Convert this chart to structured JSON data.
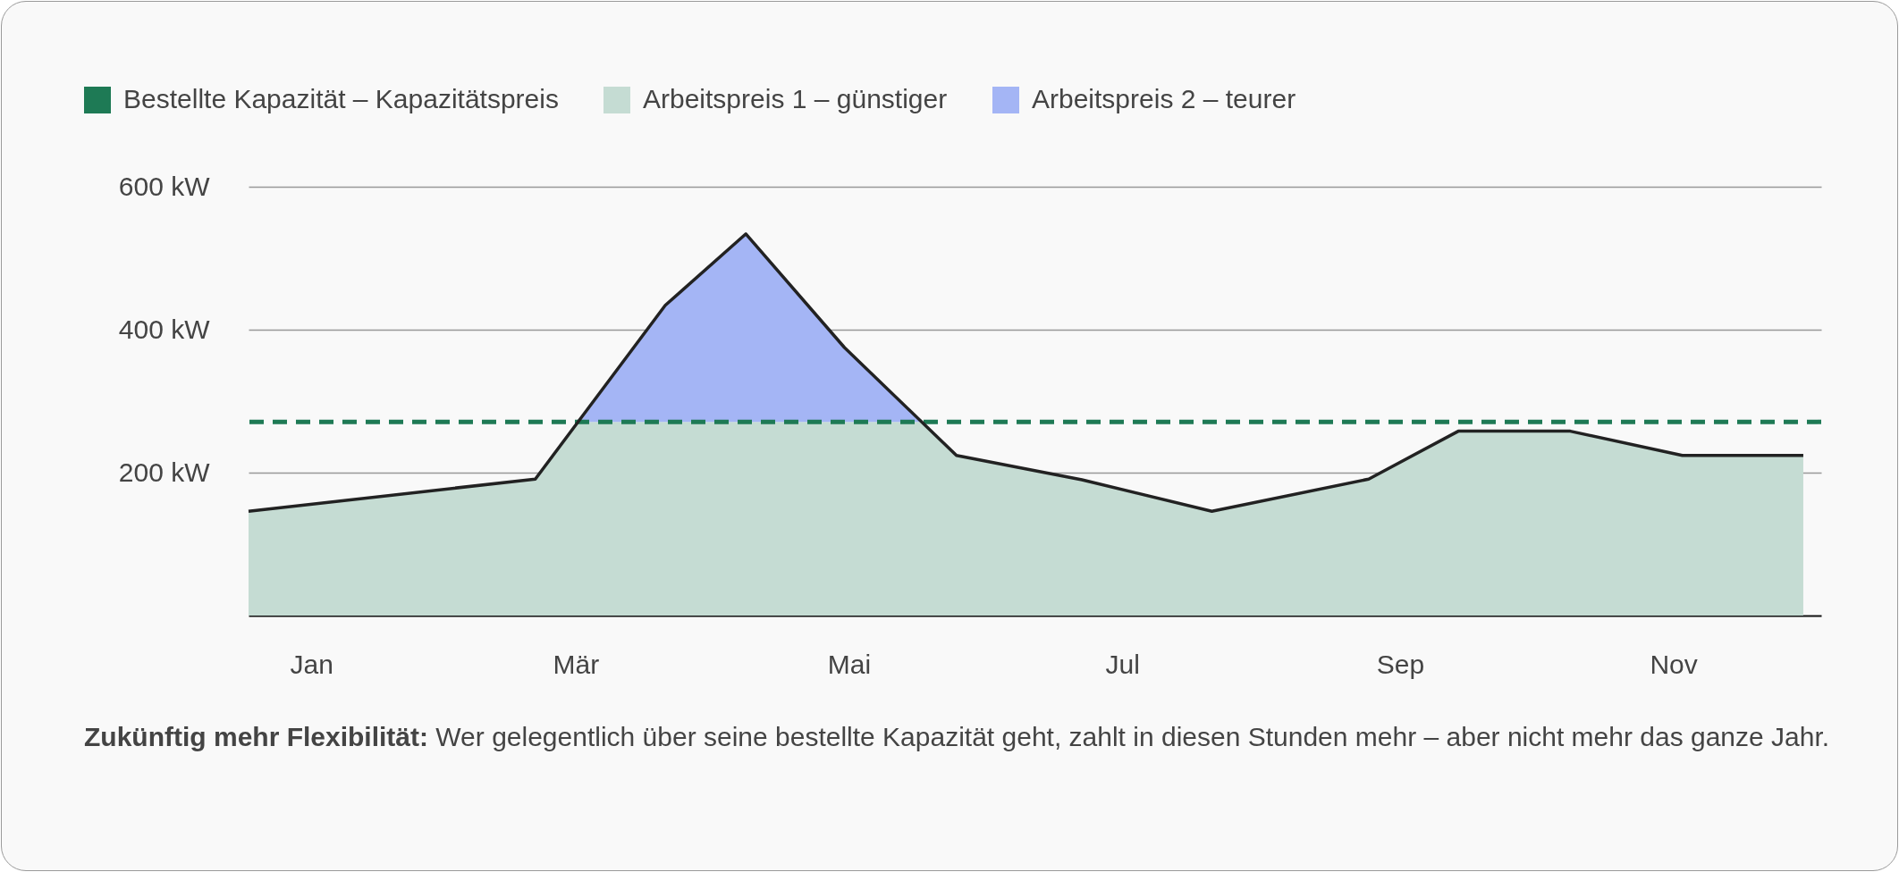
{
  "chart_data": {
    "type": "area",
    "stacked": true,
    "grid": "y",
    "legend": "top left",
    "line_style": "solid",
    "marker": "none",
    "xlim": [
      "--01-01",
      "--12-18"
    ],
    "xticks": [
      {
        "value": "--01-15",
        "label": "Jan"
      },
      {
        "value": "--03-15",
        "label": "Mär"
      },
      {
        "value": "--05-15",
        "label": "Mai"
      },
      {
        "value": "--07-15",
        "label": "Jul"
      },
      {
        "value": "--09-15",
        "label": "Sep"
      },
      {
        "value": "--11-15",
        "label": "Nov"
      }
    ],
    "ylim": [
      0,
      600
    ],
    "yticks": [
      {
        "value": 200,
        "label": "200 kW"
      },
      {
        "value": 400,
        "label": "400 kW"
      },
      {
        "value": 600,
        "label": "600 kW"
      }
    ],
    "x": [
      "--01-01",
      "--03-06",
      "--03-16",
      "--04-04",
      "--04-22",
      "--05-14",
      "--05-31",
      "--06-08",
      "--07-06",
      "--08-04",
      "--09-08",
      "--09-28",
      "--10-23",
      "--11-17",
      "--12-14"
    ],
    "series": [
      {
        "name": "Arbeitspreis 1 – günstiger",
        "color": "#c5dcd3",
        "values": [
          146,
          191,
          271,
          271,
          271,
          271,
          271,
          224,
          190,
          146,
          191,
          258,
          258,
          224,
          224
        ]
      },
      {
        "name": "Arbeitspreis 2 – teurer",
        "color": "#a4b5f5",
        "values": [
          null,
          null,
          0,
          163,
          263,
          104,
          0,
          null,
          null,
          null,
          null,
          null,
          null,
          null,
          null
        ]
      },
      {
        "type": "line",
        "color": "#222222",
        "x": [
          "--01-01",
          "--03-06",
          "--04-04",
          "--04-22",
          "--05-14",
          "--06-08",
          "--07-06",
          "--08-04",
          "--09-08",
          "--09-28",
          "--10-23",
          "--11-17",
          "--12-14"
        ],
        "values": [
          146,
          191,
          434,
          534,
          375,
          224,
          190,
          146,
          191,
          258,
          258,
          224,
          224
        ]
      }
    ],
    "ref_lines": [
      {
        "axis": "y",
        "value": 271,
        "label": "Bestellte Kapazität – Kapazitätspreis",
        "color": "#1e7a55",
        "line_style": "dashed"
      }
    ],
    "annotations": [
      "Zukünftig mehr Flexibilität: Wer gelegentlich über seine bestellte Kapazität geht, zahlt in diesen Stunden mehr – aber nicht mehr das ganze Jahr."
    ]
  }
}
